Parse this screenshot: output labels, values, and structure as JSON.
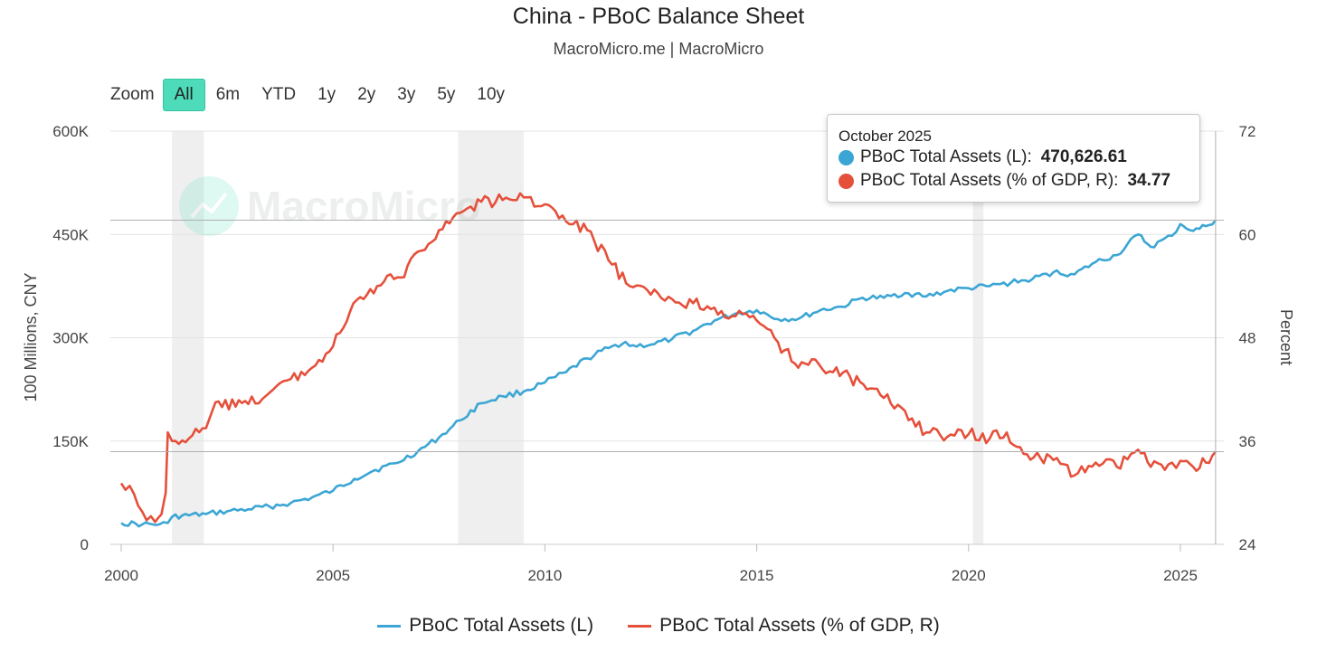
{
  "header": {
    "title": "China - PBoC Balance Sheet",
    "subtitle": "MacroMicro.me | MacroMicro"
  },
  "zoom": {
    "label": "Zoom",
    "buttons": [
      "All",
      "6m",
      "YTD",
      "1y",
      "2y",
      "3y",
      "5y",
      "10y"
    ],
    "active": "All"
  },
  "watermark": "MacroMicro",
  "tooltip": {
    "date": "October 2025",
    "rows": [
      {
        "label": "PBoC Total Assets (L):",
        "value": "470,626.61",
        "color": "#3ba6d4"
      },
      {
        "label": "PBoC Total Assets (% of GDP, R):",
        "value": "34.77",
        "color": "#e5503b"
      }
    ]
  },
  "legend": [
    {
      "label": "PBoC Total Assets (L)",
      "color": "#3ba6d4"
    },
    {
      "label": "PBoC Total Assets (% of GDP, R)",
      "color": "#e5503b"
    }
  ],
  "chart_data": {
    "type": "line",
    "title": "China - PBoC Balance Sheet",
    "subtitle": "MacroMicro.me | MacroMicro",
    "x_ticks": [
      "2000",
      "2005",
      "2010",
      "2015",
      "2020",
      "2025"
    ],
    "xlim": [
      2000,
      2025.9
    ],
    "y_left": {
      "label": "100 Millions, CNY",
      "ticks": [
        "0",
        "150K",
        "300K",
        "450K",
        "600K"
      ],
      "lim": [
        0,
        600000
      ]
    },
    "y_right": {
      "label": "Percent",
      "ticks": [
        "24",
        "36",
        "48",
        "60",
        "72"
      ],
      "lim": [
        24,
        72
      ]
    },
    "shaded_periods": [
      [
        2001.2,
        2001.95
      ],
      [
        2007.95,
        2009.5
      ],
      [
        2020.1,
        2020.35
      ]
    ],
    "grid": true,
    "legend_position": "bottom",
    "series": [
      {
        "name": "PBoC Total Assets (L)",
        "axis": "left",
        "color": "#3ba6d4",
        "points": [
          [
            2000.0,
            31000
          ],
          [
            2000.5,
            29000
          ],
          [
            2000.9,
            29000
          ],
          [
            2001.1,
            31000
          ],
          [
            2001.2,
            40000
          ],
          [
            2002.0,
            44000
          ],
          [
            2002.5,
            48000
          ],
          [
            2003.0,
            51000
          ],
          [
            2003.5,
            55000
          ],
          [
            2004.0,
            60000
          ],
          [
            2004.5,
            68000
          ],
          [
            2005.0,
            78000
          ],
          [
            2005.5,
            95000
          ],
          [
            2006.0,
            108000
          ],
          [
            2006.5,
            118000
          ],
          [
            2007.0,
            135000
          ],
          [
            2007.5,
            155000
          ],
          [
            2008.0,
            180000
          ],
          [
            2008.5,
            205000
          ],
          [
            2009.0,
            215000
          ],
          [
            2009.5,
            222000
          ],
          [
            2010.0,
            235000
          ],
          [
            2010.5,
            250000
          ],
          [
            2011.0,
            270000
          ],
          [
            2011.5,
            285000
          ],
          [
            2011.9,
            294000
          ],
          [
            2012.0,
            288000
          ],
          [
            2012.5,
            290000
          ],
          [
            2013.0,
            298000
          ],
          [
            2013.5,
            310000
          ],
          [
            2014.0,
            325000
          ],
          [
            2014.5,
            335000
          ],
          [
            2015.0,
            340000
          ],
          [
            2015.5,
            327000
          ],
          [
            2016.0,
            328000
          ],
          [
            2016.5,
            340000
          ],
          [
            2017.0,
            345000
          ],
          [
            2017.5,
            358000
          ],
          [
            2018.0,
            358000
          ],
          [
            2018.5,
            365000
          ],
          [
            2019.0,
            360000
          ],
          [
            2019.5,
            368000
          ],
          [
            2020.0,
            372000
          ],
          [
            2020.5,
            375000
          ],
          [
            2021.0,
            380000
          ],
          [
            2021.5,
            385000
          ],
          [
            2022.0,
            395000
          ],
          [
            2022.5,
            392000
          ],
          [
            2023.0,
            410000
          ],
          [
            2023.5,
            420000
          ],
          [
            2024.0,
            450000
          ],
          [
            2024.3,
            432000
          ],
          [
            2024.8,
            448000
          ],
          [
            2025.0,
            465000
          ],
          [
            2025.3,
            455000
          ],
          [
            2025.6,
            462000
          ],
          [
            2025.83,
            470627
          ]
        ]
      },
      {
        "name": "PBoC Total Assets (% of GDP, R)",
        "axis": "right",
        "color": "#e5503b",
        "points": [
          [
            2000.0,
            31.1
          ],
          [
            2000.2,
            30.8
          ],
          [
            2000.4,
            28.5
          ],
          [
            2000.6,
            26.8
          ],
          [
            2000.8,
            26.6
          ],
          [
            2000.95,
            27.5
          ],
          [
            2001.05,
            30.0
          ],
          [
            2001.1,
            37.0
          ],
          [
            2001.2,
            36.0
          ],
          [
            2001.6,
            36.3
          ],
          [
            2002.0,
            37.5
          ],
          [
            2002.3,
            40.6
          ],
          [
            2002.7,
            40.0
          ],
          [
            2003.0,
            40.3
          ],
          [
            2003.5,
            41.6
          ],
          [
            2004.0,
            43.2
          ],
          [
            2004.5,
            44.5
          ],
          [
            2005.0,
            47.0
          ],
          [
            2005.4,
            51.0
          ],
          [
            2005.8,
            53.0
          ],
          [
            2006.2,
            54.5
          ],
          [
            2006.6,
            55.0
          ],
          [
            2007.0,
            58.0
          ],
          [
            2007.5,
            60.5
          ],
          [
            2008.0,
            62.5
          ],
          [
            2008.5,
            63.8
          ],
          [
            2009.0,
            64.0
          ],
          [
            2009.5,
            64.3
          ],
          [
            2010.0,
            63.5
          ],
          [
            2010.5,
            61.5
          ],
          [
            2011.0,
            60.5
          ],
          [
            2011.5,
            57.0
          ],
          [
            2012.0,
            54.0
          ],
          [
            2012.5,
            53.0
          ],
          [
            2013.0,
            52.5
          ],
          [
            2013.5,
            52.0
          ],
          [
            2014.0,
            51.5
          ],
          [
            2014.5,
            50.5
          ],
          [
            2015.0,
            50.0
          ],
          [
            2015.5,
            47.5
          ],
          [
            2015.9,
            45.0
          ],
          [
            2016.3,
            45.5
          ],
          [
            2016.8,
            44.0
          ],
          [
            2017.2,
            43.5
          ],
          [
            2017.6,
            42.0
          ],
          [
            2018.0,
            41.0
          ],
          [
            2018.5,
            39.5
          ],
          [
            2019.0,
            37.0
          ],
          [
            2019.5,
            36.5
          ],
          [
            2020.0,
            36.8
          ],
          [
            2020.5,
            36.3
          ],
          [
            2020.9,
            37.0
          ],
          [
            2021.3,
            34.5
          ],
          [
            2021.7,
            34.0
          ],
          [
            2022.0,
            33.8
          ],
          [
            2022.5,
            32.0
          ],
          [
            2023.0,
            33.5
          ],
          [
            2023.5,
            33.0
          ],
          [
            2024.0,
            35.0
          ],
          [
            2024.3,
            33.0
          ],
          [
            2024.8,
            33.5
          ],
          [
            2025.0,
            33.7
          ],
          [
            2025.3,
            33.0
          ],
          [
            2025.6,
            33.5
          ],
          [
            2025.83,
            34.77
          ]
        ]
      }
    ]
  }
}
